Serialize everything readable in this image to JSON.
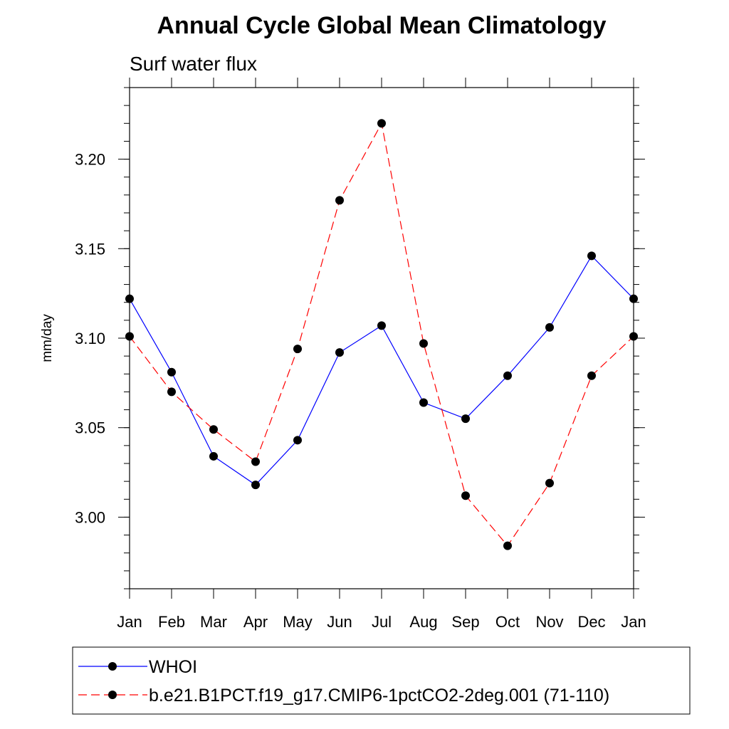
{
  "chart_data": {
    "type": "line",
    "title": "Annual Cycle Global Mean Climatology",
    "subtitle": "Surf water flux",
    "xlabel": "",
    "ylabel": "mm/day",
    "categories": [
      "Jan",
      "Feb",
      "Mar",
      "Apr",
      "May",
      "Jun",
      "Jul",
      "Aug",
      "Sep",
      "Oct",
      "Nov",
      "Dec",
      "Jan"
    ],
    "ylim": [
      2.96,
      3.24
    ],
    "yticks": [
      3.0,
      3.05,
      3.1,
      3.15,
      3.2
    ],
    "ytick_labels": [
      "3.00",
      "3.05",
      "3.10",
      "3.15",
      "3.20"
    ],
    "series": [
      {
        "name": "WHOI",
        "color": "#0000ff",
        "dash": "solid",
        "marker": "filled-circle",
        "values": [
          3.122,
          3.081,
          3.034,
          3.018,
          3.043,
          3.092,
          3.107,
          3.064,
          3.055,
          3.079,
          3.106,
          3.146,
          3.122
        ]
      },
      {
        "name": "b.e21.B1PCT.f19_g17.CMIP6-1pctCO2-2deg.001 (71-110)",
        "color": "#ff0000",
        "dash": "dashed",
        "marker": "filled-circle",
        "values": [
          3.101,
          3.07,
          3.049,
          3.031,
          3.094,
          3.177,
          3.22,
          3.097,
          3.012,
          2.984,
          3.019,
          3.079,
          3.101
        ]
      }
    ],
    "legend_position": "bottom",
    "grid": false
  }
}
